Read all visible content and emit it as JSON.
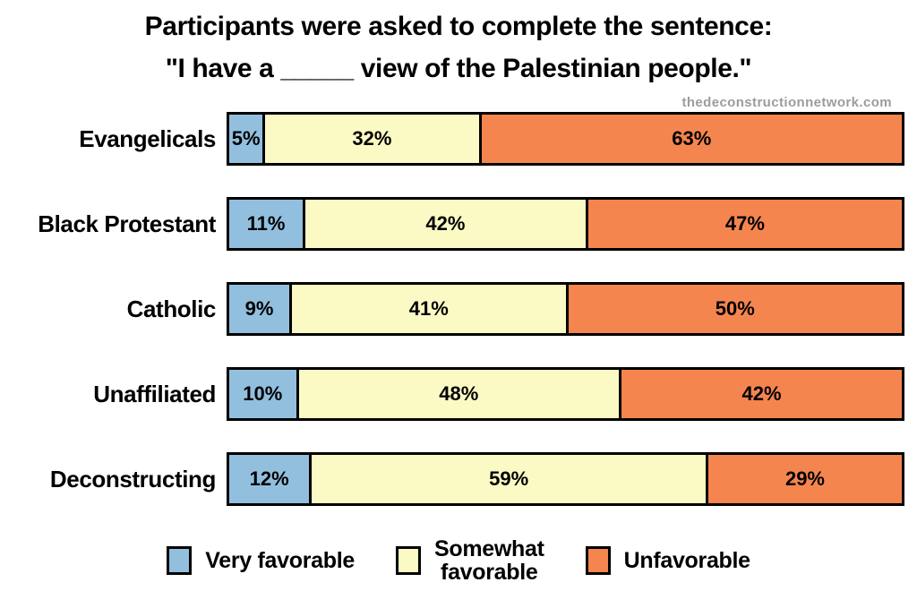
{
  "title": {
    "line1": "Participants were asked to complete the sentence:",
    "line2": "\"I have a _____ view of the Palestinian people.\""
  },
  "watermark": "thedeconstructionnetwork.com",
  "colors": {
    "very_favorable": "#92BFDE",
    "somewhat_favorable": "#FBFAC4",
    "unfavorable": "#F5854F",
    "border": "#000000",
    "watermark_gray": "#9c9c9c"
  },
  "chart_data": {
    "type": "bar",
    "orientation": "horizontal-stacked",
    "title": "Participants were asked to complete the sentence: \"I have a _____ view of the Palestinian people.\"",
    "categories": [
      "Evangelicals",
      "Black Protestant",
      "Catholic",
      "Unaffiliated",
      "Deconstructing"
    ],
    "series": [
      {
        "name": "Very favorable",
        "color": "#92BFDE",
        "values": [
          5,
          11,
          9,
          10,
          12
        ]
      },
      {
        "name": "Somewhat favorable",
        "color": "#FBFAC4",
        "values": [
          32,
          42,
          41,
          48,
          59
        ]
      },
      {
        "name": "Unfavorable",
        "color": "#F5854F",
        "values": [
          63,
          47,
          50,
          42,
          29
        ]
      }
    ],
    "value_format": "percent",
    "xlim": [
      0,
      100
    ],
    "grid": false,
    "legend_position": "bottom"
  },
  "rows": [
    {
      "label": "Evangelicals",
      "segments": [
        {
          "text": "5%",
          "value": 5
        },
        {
          "text": "32%",
          "value": 32
        },
        {
          "text": "63%",
          "value": 63
        }
      ]
    },
    {
      "label": "Black Protestant",
      "segments": [
        {
          "text": "11%",
          "value": 11
        },
        {
          "text": "42%",
          "value": 42
        },
        {
          "text": "47%",
          "value": 47
        }
      ]
    },
    {
      "label": "Catholic",
      "segments": [
        {
          "text": "9%",
          "value": 9
        },
        {
          "text": "41%",
          "value": 41
        },
        {
          "text": "50%",
          "value": 50
        }
      ]
    },
    {
      "label": "Unaffiliated",
      "segments": [
        {
          "text": "10%",
          "value": 10
        },
        {
          "text": "48%",
          "value": 48
        },
        {
          "text": "42%",
          "value": 42
        }
      ]
    },
    {
      "label": "Deconstructing",
      "segments": [
        {
          "text": "12%",
          "value": 12
        },
        {
          "text": "59%",
          "value": 59
        },
        {
          "text": "29%",
          "value": 29
        }
      ]
    }
  ],
  "legend": [
    {
      "label": "Very favorable"
    },
    {
      "label": "Somewhat\nfavorable"
    },
    {
      "label": "Unfavorable"
    }
  ]
}
